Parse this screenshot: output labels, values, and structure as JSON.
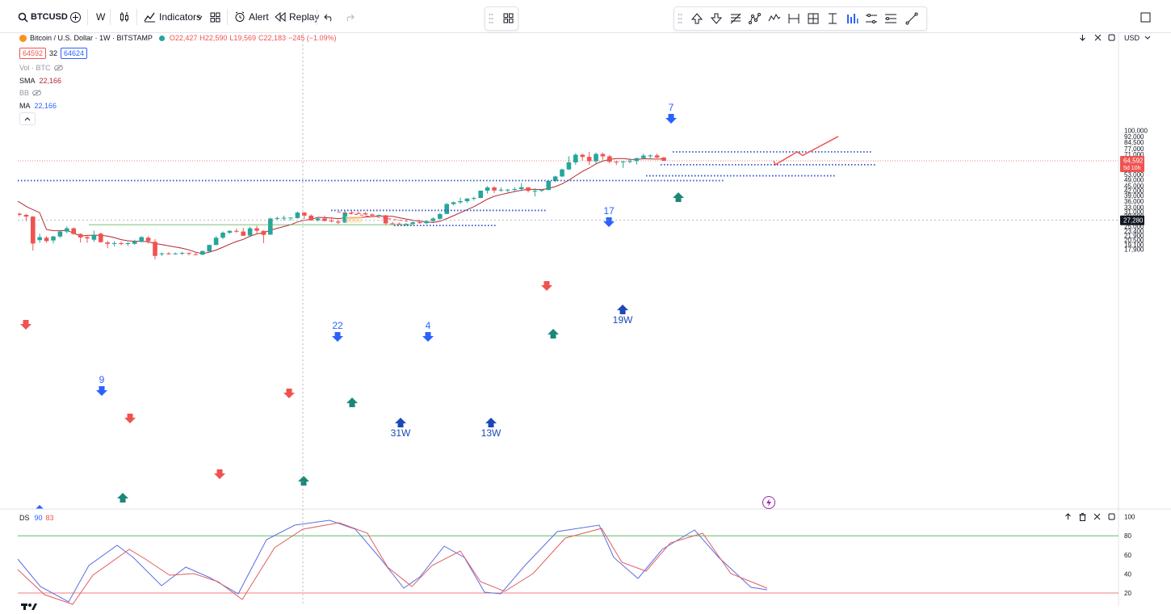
{
  "toolbar": {
    "symbol": "BTCUSD",
    "interval": "W",
    "indicators_label": "Indicators",
    "alert_label": "Alert",
    "replay_label": "Replay"
  },
  "legend": {
    "title": "Bitcoin / U.S. Dollar · 1W · BITSTAMP",
    "open": "O22,427",
    "high": "H22,590",
    "low": "L19,569",
    "close": "C22,183",
    "change": "−245 (−1.09%)",
    "sell_price": "64592",
    "spread": "32",
    "buy_price": "64624",
    "vol_label": "Vol · BTC",
    "sma_label": "SMA",
    "sma_value": "22,166",
    "bb_label": "BB",
    "ma_label": "MA",
    "ma_value": "22,166",
    "currency": "USD"
  },
  "price_axis": {
    "ticks": [
      "100,000",
      "92,000",
      "84,500",
      "77,000",
      "71,000",
      "67,000",
      "64,592",
      "61,000",
      "57,000",
      "53,000",
      "49,000",
      "45,000",
      "42,000",
      "39,000",
      "36,000",
      "33,000",
      "31,000",
      "29,000",
      "27,280",
      "25,000",
      "23,400",
      "21,900",
      "20,500",
      "19,100",
      "17,900"
    ],
    "current_price": "64,592",
    "countdown": "5d 10h",
    "crosshair_price": "27,280"
  },
  "oscillator": {
    "label": "DS",
    "k": "90",
    "d": "83",
    "ticks": [
      "100",
      "80",
      "60",
      "40",
      "20"
    ]
  },
  "annotations": {
    "counts": [
      "9",
      "22",
      "4",
      "17",
      "7"
    ],
    "week_labels": [
      "31W",
      "13W",
      "19W"
    ]
  },
  "colors": {
    "up": "#26a69a",
    "down": "#ef5350",
    "signal_blue": "#2962ff",
    "ma_line": "#b22833",
    "dotted_blue": "#2f55c8",
    "osc_blue": "#5b6ee1",
    "osc_red": "#e06060"
  },
  "chart_data": {
    "type": "candlestick",
    "symbol": "BTCUSD",
    "timeframe": "1W",
    "exchange": "BITSTAMP",
    "candles_ohlc": [
      [
        30000,
        30500,
        29000,
        29500
      ],
      [
        29500,
        30000,
        27000,
        28800
      ],
      [
        28800,
        29000,
        17600,
        19500
      ],
      [
        20500,
        22500,
        19700,
        21400
      ],
      [
        21200,
        21700,
        19700,
        20200
      ],
      [
        20400,
        21800,
        19500,
        21600
      ],
      [
        21600,
        23700,
        21200,
        23200
      ],
      [
        23200,
        25000,
        22600,
        24300
      ],
      [
        24300,
        24600,
        22100,
        22400
      ],
      [
        22400,
        22600,
        19800,
        21300
      ],
      [
        21400,
        21700,
        19700,
        21000
      ],
      [
        20600,
        23500,
        20000,
        22000
      ],
      [
        22500,
        22800,
        19700,
        19900
      ],
      [
        19800,
        20300,
        18200,
        19400
      ],
      [
        19400,
        20200,
        18700,
        19600
      ],
      [
        19600,
        20100,
        19000,
        19500
      ],
      [
        19500,
        19900,
        18800,
        19600
      ],
      [
        19400,
        20600,
        19200,
        20100
      ],
      [
        20000,
        21700,
        19800,
        21400
      ],
      [
        21200,
        21700,
        19500,
        20200
      ],
      [
        20000,
        20800,
        15500,
        16300
      ],
      [
        16800,
        17100,
        16300,
        16900
      ],
      [
        16900,
        17200,
        16600,
        16800
      ],
      [
        16800,
        17100,
        16600,
        16900
      ],
      [
        16900,
        17300,
        16500,
        17000
      ],
      [
        17000,
        17100,
        16400,
        16800
      ],
      [
        16700,
        17200,
        16500,
        16600
      ],
      [
        16600,
        17600,
        16500,
        17500
      ],
      [
        17400,
        19200,
        17300,
        19100
      ],
      [
        19100,
        21700,
        19000,
        21200
      ],
      [
        21200,
        23200,
        20800,
        22800
      ],
      [
        22800,
        23600,
        22400,
        23400
      ],
      [
        23400,
        24200,
        22800,
        23200
      ],
      [
        23200,
        24400,
        22300,
        21800
      ],
      [
        21900,
        24900,
        21400,
        24300
      ],
      [
        24300,
        25200,
        22600,
        23500
      ],
      [
        23400,
        23600,
        19600,
        22100
      ],
      [
        22200,
        28400,
        22000,
        28000
      ],
      [
        28000,
        28800,
        27400,
        28200
      ],
      [
        28200,
        29200,
        27200,
        28300
      ],
      [
        28300,
        28400,
        27200,
        28400
      ],
      [
        28200,
        30900,
        28000,
        30500
      ],
      [
        30500,
        30800,
        27800,
        29200
      ],
      [
        29200,
        29800,
        27100,
        27300
      ],
      [
        27300,
        28500,
        26800,
        28000
      ],
      [
        28000,
        29200,
        26900,
        27000
      ],
      [
        27100,
        28600,
        26500,
        26800
      ],
      [
        26800,
        27500,
        25800,
        26400
      ],
      [
        26400,
        31300,
        26300,
        30500
      ],
      [
        30500,
        31400,
        29700,
        30300
      ],
      [
        30300,
        31000,
        29900,
        30200
      ],
      [
        30200,
        30800,
        29400,
        29700
      ],
      [
        29700,
        30100,
        28800,
        29200
      ],
      [
        29200,
        29700,
        28900,
        29400
      ],
      [
        29300,
        29500,
        25400,
        26100
      ],
      [
        26100,
        26700,
        25800,
        26000
      ],
      [
        26000,
        26400,
        25600,
        25800
      ],
      [
        25800,
        26200,
        25200,
        25900
      ],
      [
        25900,
        26900,
        25700,
        26500
      ],
      [
        26500,
        27500,
        26000,
        26200
      ],
      [
        26200,
        27300,
        25800,
        27000
      ],
      [
        27000,
        28500,
        26600,
        28000
      ],
      [
        27900,
        30400,
        27500,
        29900
      ],
      [
        29900,
        35100,
        29800,
        34500
      ],
      [
        34500,
        35800,
        33800,
        35400
      ],
      [
        35400,
        37900,
        34600,
        36000
      ],
      [
        36000,
        37500,
        35100,
        37400
      ],
      [
        37300,
        38400,
        36300,
        37700
      ],
      [
        37700,
        42000,
        37600,
        41900
      ],
      [
        41900,
        44800,
        40200,
        43900
      ],
      [
        43900,
        44700,
        40500,
        42000
      ],
      [
        42000,
        44000,
        41200,
        42500
      ],
      [
        42500,
        43000,
        41000,
        42500
      ],
      [
        42500,
        44200,
        41000,
        42900
      ],
      [
        42900,
        46800,
        41700,
        44000
      ],
      [
        43900,
        44200,
        40800,
        41800
      ],
      [
        41800,
        43500,
        38500,
        41900
      ],
      [
        41900,
        42600,
        41000,
        42400
      ],
      [
        42300,
        48600,
        42200,
        48300
      ],
      [
        48300,
        52000,
        47500,
        51500
      ],
      [
        51500,
        57600,
        51000,
        57000
      ],
      [
        57000,
        69000,
        56800,
        63100
      ],
      [
        63100,
        72000,
        61000,
        70500
      ],
      [
        70500,
        71500,
        64500,
        68300
      ],
      [
        68300,
        73500,
        60800,
        64100
      ],
      [
        64100,
        72800,
        62200,
        71300
      ],
      [
        71300,
        72700,
        65600,
        68900
      ],
      [
        68900,
        70300,
        62400,
        63700
      ],
      [
        63700,
        64800,
        60800,
        63400
      ],
      [
        63400,
        64400,
        58300,
        63900
      ],
      [
        63900,
        66900,
        62300,
        64400
      ],
      [
        64400,
        67700,
        61200,
        67100
      ],
      [
        67100,
        71900,
        66500,
        69600
      ],
      [
        69600,
        70900,
        66000,
        69800
      ],
      [
        69800,
        71700,
        67200,
        67700
      ],
      [
        67700,
        68300,
        64400,
        64592
      ]
    ],
    "signals": [
      {
        "count": "9",
        "direction": "down"
      },
      {
        "count": "22",
        "direction": "down"
      },
      {
        "count": "4",
        "direction": "down"
      },
      {
        "count": "17",
        "direction": "down"
      },
      {
        "count": "7",
        "direction": "down"
      },
      {
        "label": "31W",
        "direction": "up"
      },
      {
        "label": "13W",
        "direction": "up"
      },
      {
        "label": "19W",
        "direction": "up"
      }
    ],
    "dotted_levels": [
      73500,
      61000,
      52000,
      48500,
      31500,
      25300
    ],
    "solid_level": 25600,
    "projection_path": [
      64592,
      61000,
      73500,
      69800,
      92000
    ],
    "oscillator_range": [
      0,
      100
    ],
    "oscillator_bands": [
      20,
      80
    ]
  }
}
